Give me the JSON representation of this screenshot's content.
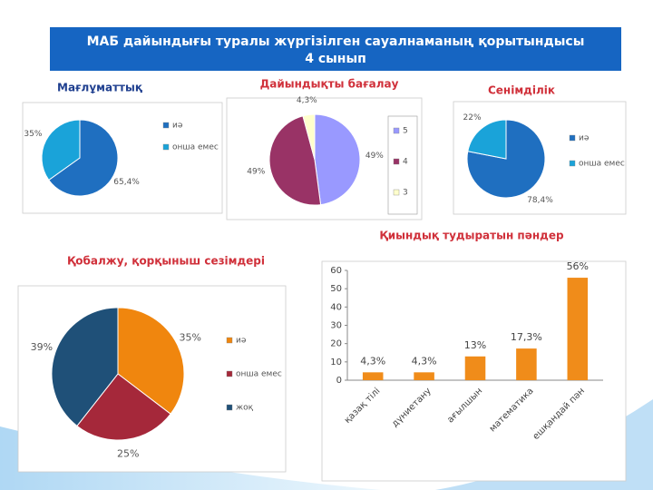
{
  "header": {
    "lines": [
      "МАБ дайындығы туралы жүргізілген сауалнаманың қорытындысы",
      "4 сынып"
    ]
  },
  "chart_data": [
    {
      "type": "pie",
      "title": "Мағлұматтық",
      "categories": [
        "иә",
        "онша емес"
      ],
      "values": [
        65.4,
        35
      ],
      "value_labels": [
        "65,4%",
        "35%"
      ],
      "colors": [
        "#1f6fc0",
        "#1aa3d9"
      ],
      "legend": "right"
    },
    {
      "type": "pie",
      "title": "Дайындықты бағалау",
      "categories": [
        "5",
        "4",
        "3"
      ],
      "values": [
        49,
        49,
        4.3
      ],
      "value_labels": [
        "49%",
        "49%",
        "4,3%"
      ],
      "colors": [
        "#9999ff",
        "#993366",
        "#ffffcc"
      ],
      "legend": "right"
    },
    {
      "type": "pie",
      "title": "Сенімділік",
      "categories": [
        "иә",
        "онша емес"
      ],
      "values": [
        78.4,
        22
      ],
      "value_labels": [
        "78,4%",
        "22%"
      ],
      "colors": [
        "#1f6fc0",
        "#1aa3d9"
      ],
      "legend": "right"
    },
    {
      "type": "pie",
      "title": "Қобалжу, қорқыныш сезімдері",
      "categories": [
        "иә",
        "онша емес",
        "жоқ"
      ],
      "values": [
        35,
        25,
        39
      ],
      "value_labels": [
        "35%",
        "25%",
        "39%"
      ],
      "colors": [
        "#f0860e",
        "#a5283a",
        "#1f5078"
      ],
      "legend": "right"
    },
    {
      "type": "bar",
      "title": "Қиындық тудыратын пәндер",
      "categories": [
        "қазақ тілі",
        "дүниетану",
        "ағылшын",
        "математика",
        "ешқандай пән"
      ],
      "values": [
        4.3,
        4.3,
        13,
        17.3,
        56
      ],
      "value_labels": [
        "4,3%",
        "4,3%",
        "13%",
        "17,3%",
        "56%"
      ],
      "color": "#f08c1a",
      "ylim": [
        0,
        60
      ],
      "yticks": [
        0,
        10,
        20,
        30,
        40,
        50,
        60
      ],
      "grid": false
    }
  ]
}
